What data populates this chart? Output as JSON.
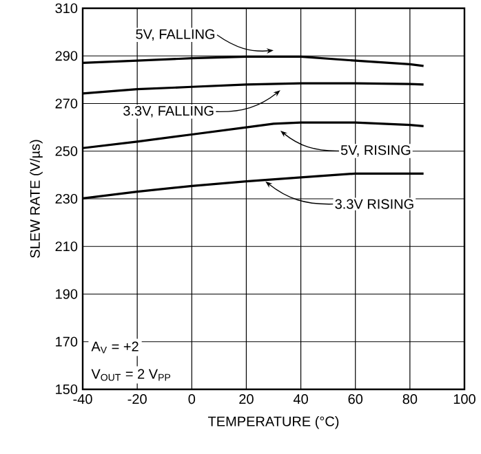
{
  "chart_data": {
    "type": "line",
    "xlabel": "TEMPERATURE (°C)",
    "ylabel": "SLEW RATE (V/µs)",
    "xlim": [
      -40,
      100
    ],
    "ylim": [
      150,
      310
    ],
    "xticks": [
      -40,
      -20,
      0,
      20,
      40,
      60,
      80,
      100
    ],
    "yticks": [
      150,
      170,
      190,
      210,
      230,
      250,
      270,
      290,
      310
    ],
    "grid": true,
    "marker": "none",
    "line_style": "solid",
    "series": [
      {
        "color": "#000000",
        "x": [
          -40,
          -20,
          0,
          20,
          40,
          60,
          80,
          85
        ],
        "values": [
          287.1,
          288,
          289,
          289.7,
          289.7,
          288,
          286.5,
          285.8
        ]
      },
      {
        "color": "#000000",
        "x": [
          -40,
          -20,
          0,
          20,
          40,
          60,
          80,
          85
        ],
        "values": [
          274.2,
          276,
          277,
          278,
          278.5,
          278.5,
          278.2,
          278
        ]
      },
      {
        "color": "#000000",
        "x": [
          -40,
          -20,
          0,
          20,
          30,
          40,
          60,
          80,
          85
        ],
        "values": [
          251.3,
          254,
          257,
          260,
          261.5,
          262,
          262,
          261,
          260.5
        ]
      },
      {
        "color": "#000000",
        "x": [
          -40,
          -20,
          0,
          20,
          40,
          60,
          80,
          85
        ],
        "values": [
          230.2,
          233,
          235.4,
          237.3,
          239,
          240.6,
          240.6,
          240.6
        ]
      }
    ],
    "annotations": [
      {
        "text": "5V, FALLING",
        "x": 30,
        "y": 292.3
      },
      {
        "text": "3.3V, FALLING",
        "x": 32.5,
        "y": 275.6
      },
      {
        "text": "5V, RISING",
        "x": 32.5,
        "y": 258.6
      },
      {
        "text": "3.3V RISING",
        "x": 27,
        "y": 237.3
      },
      "A$_{V}$ = +2",
      "V$_{OUT}$ = 2 V$_{PP}$"
    ]
  }
}
